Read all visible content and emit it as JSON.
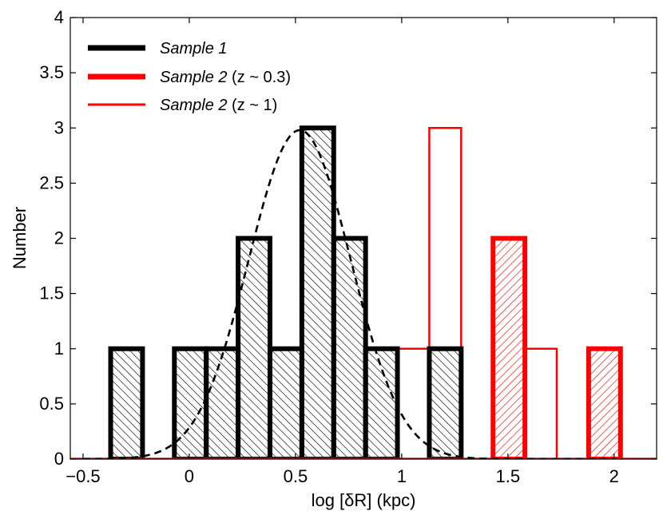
{
  "chart_data": {
    "type": "histogram",
    "xlabel": "log [δR]  (kpc)",
    "ylabel": "Number",
    "xlim": [
      -0.56,
      2.2
    ],
    "ylim": [
      0,
      4
    ],
    "xticks": [
      -0.5,
      0,
      0.5,
      1,
      1.5,
      2
    ],
    "xtick_labels": [
      "−0.5",
      "0",
      "0.5",
      "1",
      "1.5",
      "2"
    ],
    "yticks": [
      0,
      0.5,
      1,
      1.5,
      2,
      2.5,
      3,
      3.5,
      4
    ],
    "ytick_labels": [
      "0",
      "0.5",
      "1",
      "1.5",
      "2",
      "2.5",
      "3",
      "3.5",
      "4"
    ],
    "legend": {
      "position": "top-left",
      "entries": [
        {
          "label_main": "Sample 1",
          "label_suffix": "",
          "color": "#000000",
          "style": "thick"
        },
        {
          "label_main": "Sample 2",
          "label_suffix": " (z ~ 0.3)",
          "color": "#ff0000",
          "style": "thick"
        },
        {
          "label_main": "Sample 2",
          "label_suffix": " (z ~ 1)",
          "color": "#ff0000",
          "style": "thin"
        }
      ]
    },
    "series": [
      {
        "name": "Sample 1",
        "color": "#000000",
        "style": "thick-hatched",
        "bins": [
          {
            "x0": -0.37,
            "x1": -0.22,
            "count": 1
          },
          {
            "x0": -0.07,
            "x1": 0.08,
            "count": 1
          },
          {
            "x0": 0.08,
            "x1": 0.23,
            "count": 1
          },
          {
            "x0": 0.23,
            "x1": 0.38,
            "count": 2
          },
          {
            "x0": 0.38,
            "x1": 0.53,
            "count": 1
          },
          {
            "x0": 0.53,
            "x1": 0.68,
            "count": 3
          },
          {
            "x0": 0.68,
            "x1": 0.83,
            "count": 2
          },
          {
            "x0": 0.83,
            "x1": 0.98,
            "count": 1
          },
          {
            "x0": 1.13,
            "x1": 1.28,
            "count": 1
          }
        ]
      },
      {
        "name": "Sample 2 (z ~ 0.3)",
        "color": "#ff0000",
        "style": "thick-hatched",
        "bins": [
          {
            "x0": 1.43,
            "x1": 1.58,
            "count": 2
          },
          {
            "x0": 1.88,
            "x1": 2.03,
            "count": 1
          }
        ]
      },
      {
        "name": "Sample 2 (z ~ 1)",
        "color": "#ff0000",
        "style": "thin",
        "bins": [
          {
            "x0": 0.98,
            "x1": 1.13,
            "count": 1
          },
          {
            "x0": 1.13,
            "x1": 1.28,
            "count": 3
          },
          {
            "x0": 1.58,
            "x1": 1.73,
            "count": 1
          }
        ]
      }
    ],
    "gaussian_fit": {
      "style": "dashed",
      "color": "#000000",
      "amplitude": 2.98,
      "mean": 0.52,
      "sigma": 0.24,
      "x_range": [
        -0.5,
        2.0
      ]
    }
  }
}
